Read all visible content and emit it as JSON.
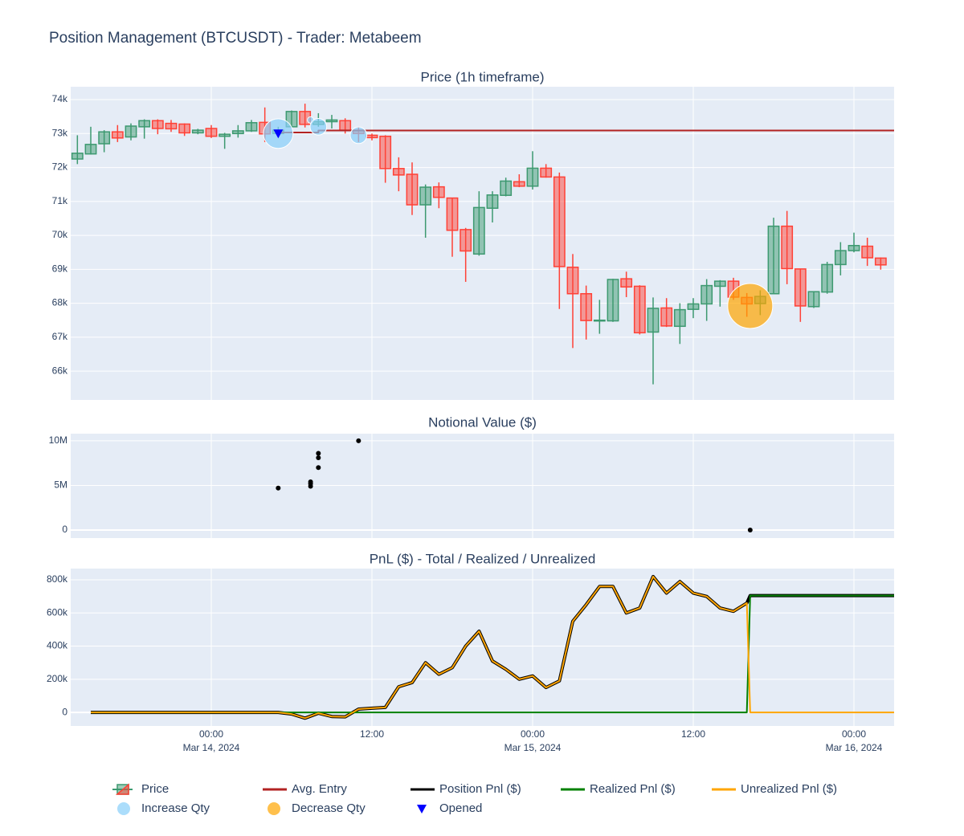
{
  "title": "Position Management (BTCUSDT) - Trader: Metabeem",
  "chart_data": [
    {
      "type": "candlestick",
      "title": "Price (1h timeframe)",
      "xlim": [
        "2024-03-13 13:30",
        "2024-03-16 03:00"
      ],
      "xticks": [
        "2024-03-14 00:00",
        "2024-03-14 12:00",
        "2024-03-15 00:00",
        "2024-03-15 12:00",
        "2024-03-16 00:00"
      ],
      "ylim": [
        65150,
        74380
      ],
      "yticks": [
        {
          "value": 66000,
          "label": "66k"
        },
        {
          "value": 67000,
          "label": "67k"
        },
        {
          "value": 68000,
          "label": "68k"
        },
        {
          "value": 69000,
          "label": "69k"
        },
        {
          "value": 70000,
          "label": "70k"
        },
        {
          "value": 71000,
          "label": "71k"
        },
        {
          "value": 72000,
          "label": "72k"
        },
        {
          "value": 73000,
          "label": "73k"
        },
        {
          "value": 74000,
          "label": "74k"
        }
      ],
      "grid": true,
      "series": [
        {
          "name": "Price",
          "type": "candlestick",
          "increasing_color": "#3D9970",
          "decreasing_color": "#FF4136",
          "x": [
            "2024-03-13 14:00",
            "2024-03-13 15:00",
            "2024-03-13 16:00",
            "2024-03-13 17:00",
            "2024-03-13 18:00",
            "2024-03-13 19:00",
            "2024-03-13 20:00",
            "2024-03-13 21:00",
            "2024-03-13 22:00",
            "2024-03-13 23:00",
            "2024-03-14 00:00",
            "2024-03-14 01:00",
            "2024-03-14 02:00",
            "2024-03-14 03:00",
            "2024-03-14 04:00",
            "2024-03-14 05:00",
            "2024-03-14 06:00",
            "2024-03-14 07:00",
            "2024-03-14 08:00",
            "2024-03-14 09:00",
            "2024-03-14 10:00",
            "2024-03-14 11:00",
            "2024-03-14 12:00",
            "2024-03-14 13:00",
            "2024-03-14 14:00",
            "2024-03-14 15:00",
            "2024-03-14 16:00",
            "2024-03-14 17:00",
            "2024-03-14 18:00",
            "2024-03-14 19:00",
            "2024-03-14 20:00",
            "2024-03-14 21:00",
            "2024-03-14 22:00",
            "2024-03-14 23:00",
            "2024-03-15 00:00",
            "2024-03-15 01:00",
            "2024-03-15 02:00",
            "2024-03-15 03:00",
            "2024-03-15 04:00",
            "2024-03-15 05:00",
            "2024-03-15 06:00",
            "2024-03-15 07:00",
            "2024-03-15 08:00",
            "2024-03-15 09:00",
            "2024-03-15 10:00",
            "2024-03-15 11:00",
            "2024-03-15 12:00",
            "2024-03-15 13:00",
            "2024-03-15 14:00",
            "2024-03-15 15:00",
            "2024-03-15 16:00",
            "2024-03-15 17:00",
            "2024-03-15 18:00",
            "2024-03-15 19:00",
            "2024-03-15 20:00",
            "2024-03-15 21:00",
            "2024-03-15 22:00",
            "2024-03-15 23:00",
            "2024-03-16 00:00",
            "2024-03-16 01:00",
            "2024-03-16 02:00"
          ],
          "open": [
            72250,
            72400,
            72700,
            73050,
            72900,
            73200,
            73380,
            73300,
            73280,
            73020,
            73150,
            72920,
            73000,
            73080,
            73330,
            73000,
            73200,
            73650,
            73270,
            73350,
            73380,
            73100,
            72950,
            72920,
            71970,
            71800,
            70900,
            71430,
            71100,
            70170,
            69450,
            70800,
            71180,
            71580,
            71450,
            71980,
            71720,
            69060,
            68280,
            67480,
            67480,
            68720,
            68500,
            67150,
            67860,
            67320,
            67820,
            67980,
            68500,
            68650,
            68170,
            67990,
            68280,
            70270,
            69010,
            67900,
            68330,
            69140,
            69550,
            69680,
            69330
          ],
          "high": [
            72950,
            73200,
            73100,
            73250,
            73300,
            73420,
            73420,
            73400,
            73300,
            73140,
            73250,
            73020,
            73250,
            73400,
            73770,
            73200,
            73680,
            73880,
            73600,
            73550,
            73450,
            73200,
            73000,
            72950,
            72300,
            72150,
            71500,
            71560,
            71100,
            70220,
            71300,
            71300,
            71700,
            71800,
            72480,
            72100,
            71850,
            69450,
            68520,
            68100,
            68720,
            68930,
            68530,
            68170,
            68150,
            68000,
            68150,
            68710,
            68680,
            68750,
            68300,
            68380,
            70520,
            70720,
            69010,
            68350,
            69220,
            69800,
            70080,
            69930,
            69350
          ],
          "low": [
            72100,
            72380,
            72450,
            72750,
            72800,
            72850,
            72980,
            73050,
            72930,
            72980,
            72870,
            72550,
            72880,
            73050,
            72750,
            72900,
            73200,
            73180,
            73200,
            73150,
            73000,
            72750,
            72800,
            71550,
            71300,
            70600,
            69930,
            70800,
            69370,
            68630,
            69400,
            70380,
            71150,
            71420,
            71350,
            71700,
            67830,
            66680,
            66930,
            67100,
            67450,
            68180,
            67080,
            65610,
            67300,
            66800,
            67560,
            67480,
            67900,
            68100,
            67600,
            67650,
            68270,
            68560,
            67450,
            67860,
            68280,
            68820,
            69500,
            69100,
            68990
          ],
          "close": [
            72420,
            72680,
            73050,
            72870,
            73220,
            73380,
            73150,
            73140,
            73020,
            73100,
            72920,
            72980,
            73080,
            73320,
            72990,
            73100,
            73650,
            73270,
            73350,
            73400,
            73100,
            73000,
            72880,
            71970,
            71780,
            70900,
            71420,
            71120,
            70150,
            69540,
            70820,
            71190,
            71600,
            71450,
            71980,
            71720,
            69080,
            68280,
            67490,
            67500,
            68700,
            68480,
            67130,
            67850,
            67330,
            67810,
            67980,
            68520,
            68650,
            68180,
            67980,
            68200,
            70270,
            69020,
            67920,
            68340,
            69140,
            69550,
            69700,
            69340,
            69130
          ]
        },
        {
          "name": "Avg. Entry",
          "type": "line",
          "color": "#B22222",
          "x": [
            "2024-03-14 05:00",
            "2024-03-14 08:00",
            "2024-03-14 08:00",
            "2024-03-16 03:00"
          ],
          "values": [
            73030,
            73030,
            73090,
            73090
          ]
        },
        {
          "name": "Increase Qty",
          "type": "bubble",
          "color": "#87CEFA",
          "x": [
            "2024-03-14 05:00",
            "2024-03-14 07:25",
            "2024-03-14 08:00",
            "2024-03-14 11:00"
          ],
          "values": [
            73000,
            73400,
            73200,
            72950
          ],
          "sizes": [
            64,
            3,
            20,
            20
          ]
        },
        {
          "name": "Decrease Qty",
          "type": "bubble",
          "color": "#FFA500",
          "x": [
            "2024-03-15 16:15"
          ],
          "values": [
            67920
          ],
          "sizes": [
            147
          ]
        },
        {
          "name": "Opened",
          "type": "triangle-down",
          "color": "#0000FF",
          "x": [
            "2024-03-14 05:00"
          ],
          "values": [
            73000
          ]
        }
      ]
    },
    {
      "type": "scatter",
      "title": "Notional Value ($)",
      "xlim": [
        "2024-03-13 13:30",
        "2024-03-16 03:00"
      ],
      "xticks": [
        "2024-03-14 00:00",
        "2024-03-14 12:00",
        "2024-03-15 00:00",
        "2024-03-15 12:00",
        "2024-03-16 00:00"
      ],
      "ylim": [
        -900000,
        10800000
      ],
      "yticks": [
        0,
        {
          "value": 5000000,
          "label": "5M"
        },
        {
          "value": 10000000,
          "label": "10M"
        }
      ],
      "grid": true,
      "color": "#000000",
      "x": [
        "2024-03-14 05:00",
        "2024-03-14 07:25",
        "2024-03-14 07:25",
        "2024-03-14 07:25",
        "2024-03-14 08:00",
        "2024-03-14 08:00",
        "2024-03-14 08:00",
        "2024-03-14 11:00",
        "2024-03-15 16:15"
      ],
      "values": [
        4700000,
        5400000,
        5200000,
        4900000,
        8600000,
        8100000,
        7000000,
        10000000,
        0
      ]
    },
    {
      "type": "line",
      "title": "PnL ($) - Total / Realized / Unrealized",
      "xlim": [
        "2024-03-13 13:30",
        "2024-03-16 03:00"
      ],
      "xticks": [
        {
          "value": "2024-03-14 00:00",
          "label": "00:00",
          "sublabel": "Mar 14, 2024"
        },
        {
          "value": "2024-03-14 12:00",
          "label": "12:00"
        },
        {
          "value": "2024-03-15 00:00",
          "label": "00:00",
          "sublabel": "Mar 15, 2024"
        },
        {
          "value": "2024-03-15 12:00",
          "label": "12:00"
        },
        {
          "value": "2024-03-16 00:00",
          "label": "00:00",
          "sublabel": "Mar 16, 2024"
        }
      ],
      "ylim": [
        -82000,
        868000
      ],
      "yticks": [
        0,
        {
          "value": 200000,
          "label": "200k"
        },
        {
          "value": 400000,
          "label": "400k"
        },
        {
          "value": 600000,
          "label": "600k"
        },
        {
          "value": 800000,
          "label": "800k"
        }
      ],
      "grid": true,
      "x": [
        "2024-03-13 15:00",
        "2024-03-13 16:00",
        "2024-03-13 17:00",
        "2024-03-13 18:00",
        "2024-03-13 19:00",
        "2024-03-13 20:00",
        "2024-03-13 21:00",
        "2024-03-13 22:00",
        "2024-03-13 23:00",
        "2024-03-14 00:00",
        "2024-03-14 01:00",
        "2024-03-14 02:00",
        "2024-03-14 03:00",
        "2024-03-14 04:00",
        "2024-03-14 05:00",
        "2024-03-14 06:00",
        "2024-03-14 07:00",
        "2024-03-14 08:00",
        "2024-03-14 09:00",
        "2024-03-14 10:00",
        "2024-03-14 11:00",
        "2024-03-14 12:00",
        "2024-03-14 13:00",
        "2024-03-14 14:00",
        "2024-03-14 15:00",
        "2024-03-14 16:00",
        "2024-03-14 17:00",
        "2024-03-14 18:00",
        "2024-03-14 19:00",
        "2024-03-14 20:00",
        "2024-03-14 21:00",
        "2024-03-14 22:00",
        "2024-03-14 23:00",
        "2024-03-15 00:00",
        "2024-03-15 01:00",
        "2024-03-15 02:00",
        "2024-03-15 03:00",
        "2024-03-15 04:00",
        "2024-03-15 05:00",
        "2024-03-15 06:00",
        "2024-03-15 07:00",
        "2024-03-15 08:00",
        "2024-03-15 09:00",
        "2024-03-15 10:00",
        "2024-03-15 11:00",
        "2024-03-15 12:00",
        "2024-03-15 13:00",
        "2024-03-15 14:00",
        "2024-03-15 15:00",
        "2024-03-15 16:00",
        "2024-03-15 16:15",
        "2024-03-15 17:00",
        "2024-03-15 18:00",
        "2024-03-15 19:00",
        "2024-03-15 20:00",
        "2024-03-15 21:00",
        "2024-03-15 22:00",
        "2024-03-15 23:00",
        "2024-03-16 00:00",
        "2024-03-16 01:00",
        "2024-03-16 02:00",
        "2024-03-16 03:00"
      ],
      "series": [
        {
          "name": "Position Pnl ($)",
          "color": "#000000",
          "values": [
            0,
            0,
            0,
            0,
            0,
            0,
            0,
            0,
            0,
            0,
            0,
            0,
            0,
            0,
            0,
            -10000,
            -35000,
            -5000,
            -25000,
            -27000,
            20000,
            25000,
            30000,
            155000,
            180000,
            300000,
            230000,
            270000,
            400000,
            490000,
            310000,
            260000,
            200000,
            220000,
            150000,
            190000,
            550000,
            650000,
            760000,
            760000,
            600000,
            630000,
            820000,
            720000,
            790000,
            720000,
            700000,
            630000,
            610000,
            660000,
            705000,
            705000,
            705000,
            705000,
            705000,
            705000,
            705000,
            705000,
            705000,
            705000,
            705000,
            705000
          ]
        },
        {
          "name": "Realized Pnl ($)",
          "color": "#008000",
          "values": [
            0,
            0,
            0,
            0,
            0,
            0,
            0,
            0,
            0,
            0,
            0,
            0,
            0,
            0,
            0,
            0,
            0,
            0,
            0,
            0,
            0,
            0,
            0,
            0,
            0,
            0,
            0,
            0,
            0,
            0,
            0,
            0,
            0,
            0,
            0,
            0,
            0,
            0,
            0,
            0,
            0,
            0,
            0,
            0,
            0,
            0,
            0,
            0,
            0,
            0,
            705000,
            705000,
            705000,
            705000,
            705000,
            705000,
            705000,
            705000,
            705000,
            705000,
            705000,
            705000
          ]
        },
        {
          "name": "Unrealized Pnl ($)",
          "color": "#FFA500",
          "values": [
            0,
            0,
            0,
            0,
            0,
            0,
            0,
            0,
            0,
            0,
            0,
            0,
            0,
            0,
            0,
            -10000,
            -35000,
            -5000,
            -25000,
            -27000,
            20000,
            25000,
            30000,
            155000,
            180000,
            300000,
            230000,
            270000,
            400000,
            490000,
            310000,
            260000,
            200000,
            220000,
            150000,
            190000,
            550000,
            650000,
            760000,
            760000,
            600000,
            630000,
            820000,
            720000,
            790000,
            720000,
            700000,
            630000,
            610000,
            660000,
            0,
            0,
            0,
            0,
            0,
            0,
            0,
            0,
            0,
            0,
            0,
            0
          ]
        }
      ]
    }
  ]
}
